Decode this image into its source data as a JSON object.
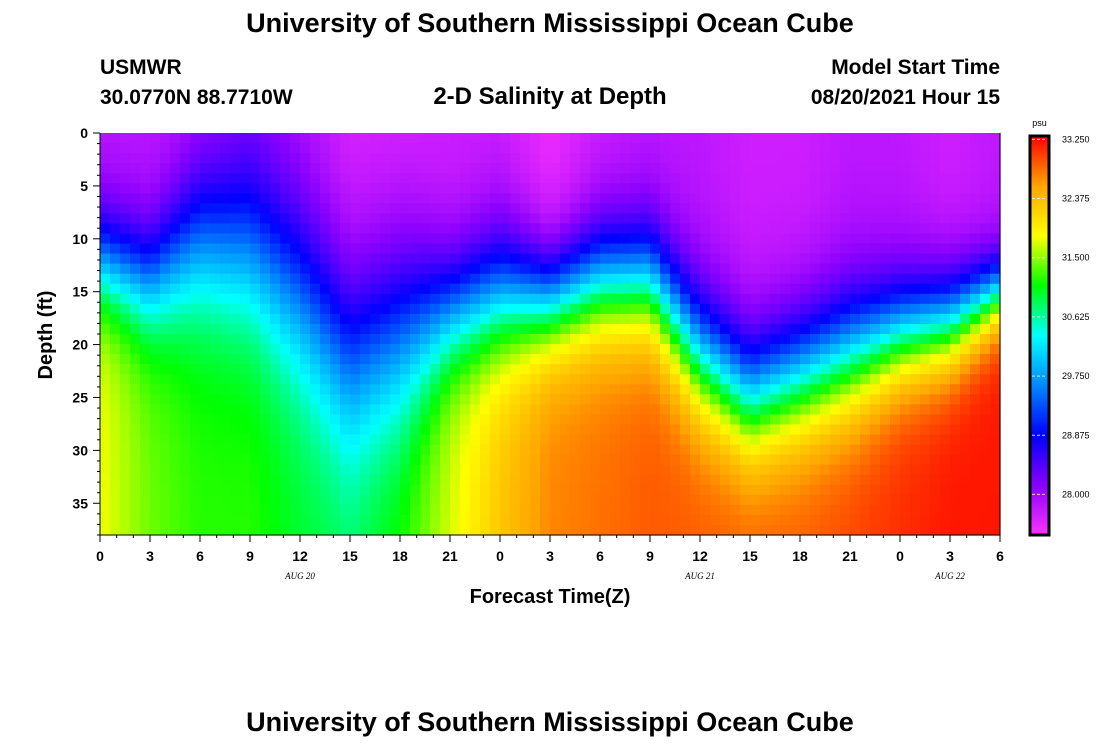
{
  "header": {
    "title": "University of Southern Mississippi Ocean Cube",
    "station": "USMWR",
    "coords": "30.0770N  88.7710W",
    "subtitle": "2-D Salinity at Depth",
    "model_start_label": "Model Start Time",
    "model_start_value": "08/20/2021 Hour 15"
  },
  "footer": {
    "title": "University of Southern Mississippi Ocean Cube"
  },
  "chart_data": {
    "type": "heatmap",
    "title": "2-D Salinity at Depth",
    "xlabel": "Forecast Time(Z)",
    "ylabel": "Depth (ft)",
    "x_ticks": [
      "0",
      "3",
      "6",
      "9",
      "12",
      "15",
      "18",
      "21",
      "0",
      "3",
      "6",
      "9",
      "12",
      "15",
      "18",
      "21",
      "0",
      "3",
      "6"
    ],
    "x_hours": [
      0,
      3,
      6,
      9,
      12,
      15,
      18,
      21,
      24,
      27,
      30,
      33,
      36,
      39,
      42,
      45,
      48,
      51,
      54
    ],
    "x_range_hours": [
      0,
      54
    ],
    "date_labels": [
      {
        "label": "AUG 20",
        "hour": 12
      },
      {
        "label": "AUG 21",
        "hour": 36
      },
      {
        "label": "AUG 22",
        "hour": 51
      }
    ],
    "y_ticks": [
      0,
      5,
      10,
      15,
      20,
      25,
      30,
      35
    ],
    "y_range": [
      0,
      38
    ],
    "y_inverted": true,
    "colorbar": {
      "unit": "psu",
      "range": [
        27.4,
        33.3
      ],
      "tick_values": [
        33.25,
        32.375,
        31.5,
        30.625,
        29.75,
        28.875,
        28.0
      ],
      "tick_labels": [
        "33.250",
        "32.375",
        "31.500",
        "30.625",
        "29.750",
        "28.875",
        "28.000"
      ],
      "colors": [
        "#ff33ff",
        "#8800ff",
        "#0000ff",
        "#0088ff",
        "#00ffff",
        "#00ff00",
        "#ffff00",
        "#ffa500",
        "#ff0000"
      ]
    },
    "field": {
      "hours": [
        0,
        3,
        6,
        9,
        12,
        15,
        18,
        21,
        24,
        27,
        30,
        33,
        36,
        39,
        42,
        45,
        48,
        51,
        54
      ],
      "surface_salinity": [
        27.8,
        27.8,
        27.8,
        28.0,
        27.8,
        27.6,
        27.6,
        27.7,
        27.7,
        27.5,
        27.7,
        27.8,
        27.8,
        27.7,
        27.7,
        27.8,
        27.8,
        27.7,
        27.8
      ],
      "bottom_salinity": [
        31.8,
        31.4,
        31.2,
        31.2,
        31.0,
        30.9,
        31.2,
        31.7,
        32.3,
        32.7,
        32.8,
        32.9,
        32.9,
        32.9,
        32.9,
        33.0,
        33.1,
        33.2,
        33.2
      ],
      "halocline_depth_ft": [
        12,
        14,
        10,
        11,
        15,
        21,
        19,
        17,
        15.5,
        16,
        14,
        14,
        21,
        25,
        23,
        21,
        19,
        18,
        15
      ],
      "thickness_ft": [
        12,
        13,
        18,
        20,
        22,
        23,
        22,
        14,
        15,
        12,
        13,
        13,
        14,
        14,
        14,
        14,
        12,
        11,
        8
      ]
    }
  }
}
